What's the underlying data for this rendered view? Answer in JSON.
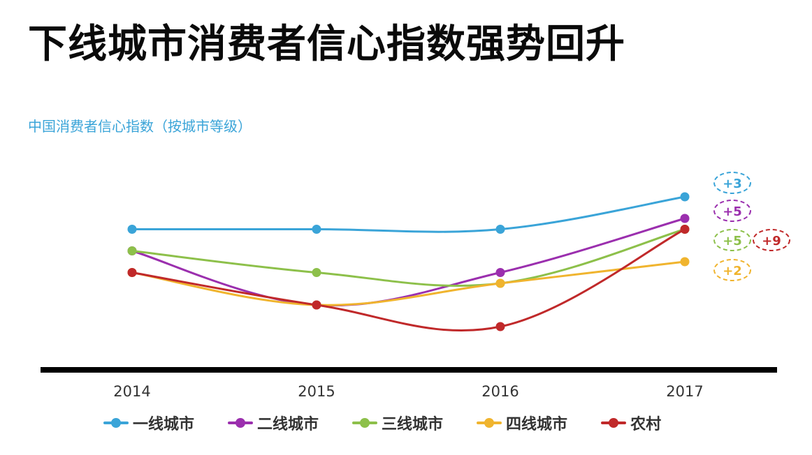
{
  "title": "下线城市消费者信心指数强势回升",
  "subtitle": "中国消费者信心指数（按城市等级）",
  "chart_data": {
    "type": "line",
    "categories": [
      "2014",
      "2015",
      "2016",
      "2017"
    ],
    "ylim": [
      100,
      120
    ],
    "grid": false,
    "legend_position": "bottom",
    "series": [
      {
        "name": "一线城市",
        "color": "#3aa4d8",
        "values": [
          113,
          113,
          113,
          116
        ],
        "change_label": "+3"
      },
      {
        "name": "二线城市",
        "color": "#9b2fae",
        "values": [
          111,
          106,
          109,
          114
        ],
        "change_label": "+5"
      },
      {
        "name": "三线城市",
        "color": "#8dc04a",
        "values": [
          111,
          109,
          108,
          113
        ],
        "change_label": "+5"
      },
      {
        "name": "四线城市",
        "color": "#f0b42e",
        "values": [
          109,
          106,
          108,
          110
        ],
        "change_label": "+2"
      },
      {
        "name": "农村",
        "color": "#c0292a",
        "values": [
          109,
          106,
          104,
          113
        ],
        "change_label": "+9"
      }
    ]
  }
}
